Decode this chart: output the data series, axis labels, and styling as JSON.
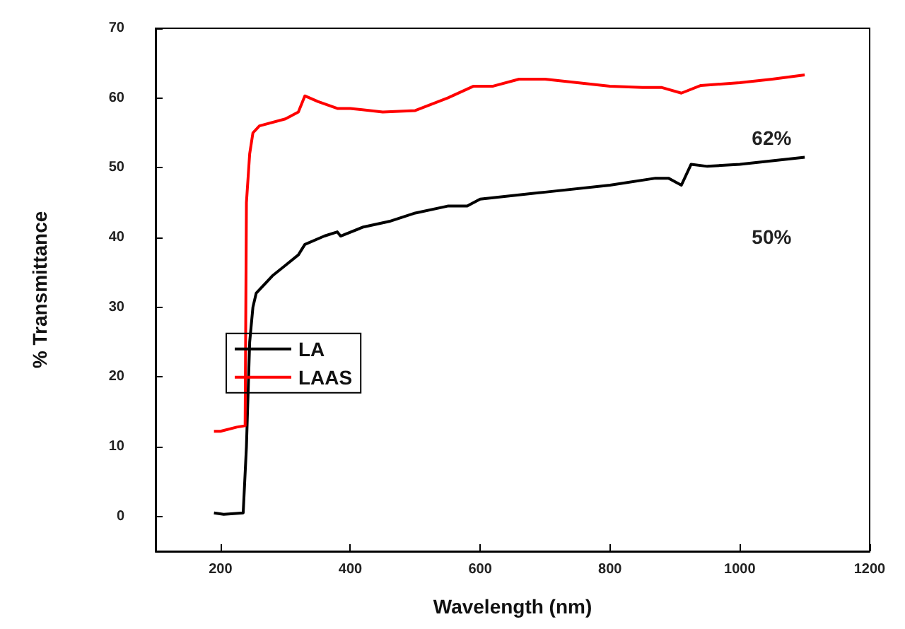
{
  "chart_data": {
    "type": "line",
    "xlabel": "Wavelength (nm)",
    "ylabel": "% Transmittance",
    "xlim": [
      100,
      1200
    ],
    "xticks": [
      200,
      400,
      600,
      800,
      1000,
      1200
    ],
    "ylim": [
      -5,
      70
    ],
    "yticks": [
      0,
      10,
      20,
      30,
      40,
      50,
      60,
      70
    ],
    "grid": false,
    "legend": "center left",
    "marker": "none",
    "line_style": "solid",
    "annotations": [
      "62%",
      "50%"
    ],
    "series": [
      {
        "name": "LA",
        "color": "#000000",
        "x": [
          190,
          205,
          235,
          240,
          245,
          250,
          255,
          280,
          300,
          320,
          330,
          360,
          380,
          385,
          420,
          460,
          500,
          550,
          580,
          600,
          700,
          800,
          870,
          890,
          910,
          925,
          950,
          1000,
          1100
        ],
        "values": [
          0.5,
          0.3,
          0.5,
          10,
          25,
          30,
          32,
          34.5,
          36,
          37.5,
          39,
          40.2,
          40.8,
          40.2,
          41.5,
          42.3,
          43.5,
          44.5,
          44.5,
          45.5,
          46.5,
          47.5,
          48.5,
          48.5,
          47.5,
          50.5,
          50.2,
          50.5,
          51.5
        ]
      },
      {
        "name": "LAAS",
        "color": "#ff0000",
        "x": [
          190,
          200,
          225,
          238,
          240,
          245,
          250,
          260,
          300,
          320,
          330,
          350,
          380,
          400,
          450,
          500,
          550,
          590,
          620,
          660,
          700,
          750,
          800,
          850,
          880,
          910,
          940,
          1000,
          1050,
          1100
        ],
        "values": [
          12.2,
          12.2,
          12.8,
          13,
          45,
          52,
          55,
          56,
          57,
          58,
          60.3,
          59.5,
          58.5,
          58.5,
          58,
          58.2,
          60,
          61.7,
          61.7,
          62.7,
          62.7,
          62.2,
          61.7,
          61.5,
          61.5,
          60.7,
          61.8,
          62.2,
          62.7,
          63.3
        ]
      }
    ]
  }
}
